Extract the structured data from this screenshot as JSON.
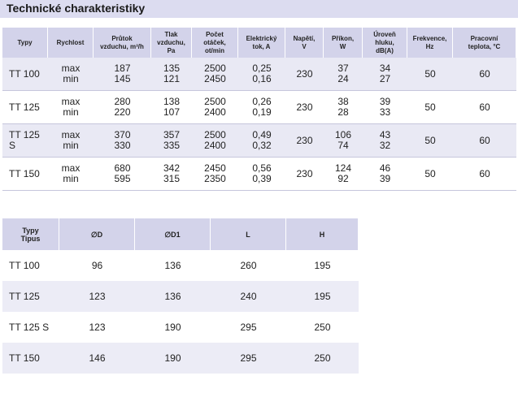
{
  "title": "Technické charakteristiky",
  "table1": {
    "headers": {
      "typy": "Typy",
      "rychlost": "Rychlost",
      "prutok_1": "Průtok",
      "prutok_2": "vzduchu, m³/h",
      "tlak_1": "Tlak",
      "tlak_2": "vzduchu,",
      "tlak_3": "Pa",
      "pocet_1": "Počet",
      "pocet_2": "otáček,",
      "pocet_3": "ot/min",
      "proud_1": "Elektrický",
      "proud_2": "tok, A",
      "napeti_1": "Napětí,",
      "napeti_2": "V",
      "prikon_1": "Příkon,",
      "prikon_2": "W",
      "hluk_1": "Úroveň",
      "hluk_2": "hluku,",
      "hluk_3": "dB(A)",
      "frekvence_1": "Frekvence,",
      "frekvence_2": "Hz",
      "teplota_1": "Pracovní",
      "teplota_2": "teplota, °C"
    },
    "rows": [
      {
        "type": "TT 100",
        "speed": [
          "max",
          "min"
        ],
        "airflow": [
          "187",
          "145"
        ],
        "pressure": [
          "135",
          "121"
        ],
        "rpm": [
          "2500",
          "2450"
        ],
        "current": [
          "0,25",
          "0,16"
        ],
        "voltage": "230",
        "power": [
          "37",
          "24"
        ],
        "noise": [
          "34",
          "27"
        ],
        "frequency": "50",
        "temp": "60"
      },
      {
        "type": "TT 125",
        "speed": [
          "max",
          "min"
        ],
        "airflow": [
          "280",
          "220"
        ],
        "pressure": [
          "138",
          "107"
        ],
        "rpm": [
          "2500",
          "2400"
        ],
        "current": [
          "0,26",
          "0,19"
        ],
        "voltage": "230",
        "power": [
          "38",
          "28"
        ],
        "noise": [
          "39",
          "33"
        ],
        "frequency": "50",
        "temp": "60"
      },
      {
        "type": "TT 125 S",
        "speed": [
          "max",
          "min"
        ],
        "airflow": [
          "370",
          "330"
        ],
        "pressure": [
          "357",
          "335"
        ],
        "rpm": [
          "2500",
          "2400"
        ],
        "current": [
          "0,49",
          "0,32"
        ],
        "voltage": "230",
        "power": [
          "106",
          "74"
        ],
        "noise": [
          "43",
          "32"
        ],
        "frequency": "50",
        "temp": "60"
      },
      {
        "type": "TT 150",
        "speed": [
          "max",
          "min"
        ],
        "airflow": [
          "680",
          "595"
        ],
        "pressure": [
          "342",
          "315"
        ],
        "rpm": [
          "2450",
          "2350"
        ],
        "current": [
          "0,56",
          "0,39"
        ],
        "voltage": "230",
        "power": [
          "124",
          "92"
        ],
        "noise": [
          "46",
          "39"
        ],
        "frequency": "50",
        "temp": "60"
      }
    ]
  },
  "table2": {
    "headers": {
      "typy_1": "Typy",
      "typy_2": "Tipus",
      "d": "∅D",
      "d1": "∅D1",
      "l": "L",
      "h": "H"
    },
    "rows": [
      {
        "type": "TT 100",
        "d": "96",
        "d1": "136",
        "l": "260",
        "h": "195"
      },
      {
        "type": "TT 125",
        "d": "123",
        "d1": "136",
        "l": "240",
        "h": "195"
      },
      {
        "type": "TT 125 S",
        "d": "123",
        "d1": "190",
        "l": "295",
        "h": "250"
      },
      {
        "type": "TT 150",
        "d": "146",
        "d1": "190",
        "l": "295",
        "h": "250"
      }
    ]
  }
}
